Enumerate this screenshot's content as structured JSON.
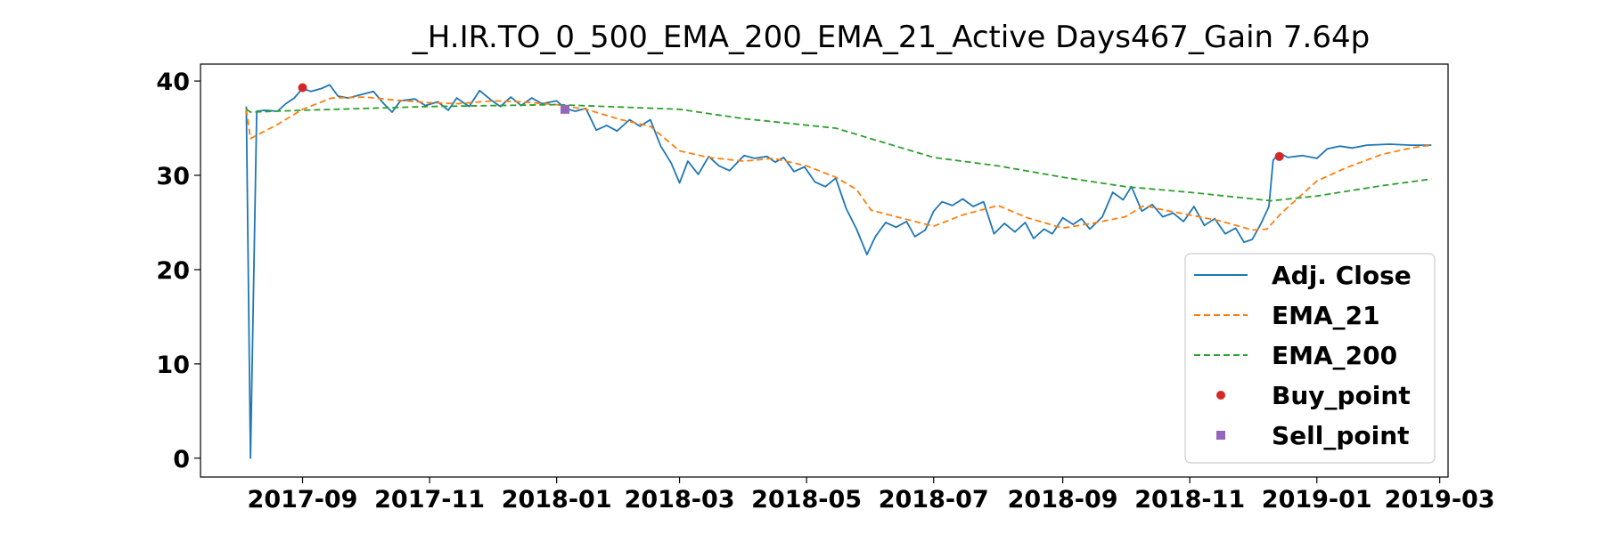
{
  "chart_data": {
    "type": "line",
    "title": "_H.IR.TO_0_500_EMA_200_EMA_21_Active Days467_Gain   7.64p",
    "xlabel": "",
    "ylabel": "",
    "x_range": [
      "2017-07-14",
      "2019-03-05"
    ],
    "ylim": [
      -2,
      41.8
    ],
    "grid": false,
    "legend_position": "lower right",
    "x_ticks": [
      "2017-09",
      "2017-11",
      "2018-01",
      "2018-03",
      "2018-05",
      "2018-07",
      "2018-09",
      "2018-11",
      "2019-01",
      "2019-03"
    ],
    "x_tick_dates": [
      "2017-09-01",
      "2017-11-01",
      "2018-01-01",
      "2018-03-01",
      "2018-05-01",
      "2018-07-01",
      "2018-09-01",
      "2018-11-01",
      "2019-01-01",
      "2019-03-01"
    ],
    "y_ticks": [
      0,
      10,
      20,
      30,
      40
    ],
    "colors": {
      "adj_close": "#1f77b4",
      "ema_21": "#ff7f0e",
      "ema_200": "#2ca02c",
      "buy_point": "#d62728",
      "sell_point": "#9467bd"
    },
    "series": [
      {
        "name": "Adj. Close",
        "style": "solid",
        "points": [
          [
            "2017-08-05",
            37.3
          ],
          [
            "2017-08-07",
            0
          ],
          [
            "2017-08-10",
            36.8
          ],
          [
            "2017-08-14",
            36.9
          ],
          [
            "2017-08-20",
            36.8
          ],
          [
            "2017-08-24",
            37.6
          ],
          [
            "2017-08-28",
            38.2
          ],
          [
            "2017-09-01",
            39.2
          ],
          [
            "2017-09-05",
            38.9
          ],
          [
            "2017-09-10",
            39.2
          ],
          [
            "2017-09-14",
            39.6
          ],
          [
            "2017-09-18",
            38.4
          ],
          [
            "2017-09-23",
            38.2
          ],
          [
            "2017-09-28",
            38.5
          ],
          [
            "2017-10-05",
            38.9
          ],
          [
            "2017-10-10",
            37.6
          ],
          [
            "2017-10-14",
            36.7
          ],
          [
            "2017-10-18",
            37.9
          ],
          [
            "2017-10-25",
            38.1
          ],
          [
            "2017-10-30",
            37.4
          ],
          [
            "2017-11-05",
            37.8
          ],
          [
            "2017-11-10",
            36.9
          ],
          [
            "2017-11-14",
            38.2
          ],
          [
            "2017-11-20",
            37.3
          ],
          [
            "2017-11-25",
            39.0
          ],
          [
            "2017-12-01",
            37.9
          ],
          [
            "2017-12-05",
            37.3
          ],
          [
            "2017-12-10",
            38.3
          ],
          [
            "2017-12-15",
            37.4
          ],
          [
            "2017-12-20",
            38.2
          ],
          [
            "2017-12-25",
            37.6
          ],
          [
            "2018-01-01",
            37.9
          ],
          [
            "2018-01-05",
            37.1
          ],
          [
            "2018-01-10",
            36.8
          ],
          [
            "2018-01-15",
            37.1
          ],
          [
            "2018-01-20",
            34.8
          ],
          [
            "2018-01-25",
            35.3
          ],
          [
            "2018-01-30",
            34.7
          ],
          [
            "2018-02-05",
            35.9
          ],
          [
            "2018-02-10",
            35.2
          ],
          [
            "2018-02-15",
            35.9
          ],
          [
            "2018-02-20",
            33.1
          ],
          [
            "2018-02-25",
            31.3
          ],
          [
            "2018-03-01",
            29.2
          ],
          [
            "2018-03-05",
            31.5
          ],
          [
            "2018-03-10",
            30.1
          ],
          [
            "2018-03-15",
            32.0
          ],
          [
            "2018-03-20",
            31.0
          ],
          [
            "2018-03-25",
            30.5
          ],
          [
            "2018-04-01",
            32.1
          ],
          [
            "2018-04-06",
            31.8
          ],
          [
            "2018-04-12",
            32.0
          ],
          [
            "2018-04-16",
            31.4
          ],
          [
            "2018-04-20",
            31.9
          ],
          [
            "2018-04-25",
            30.4
          ],
          [
            "2018-04-30",
            30.9
          ],
          [
            "2018-05-05",
            29.3
          ],
          [
            "2018-05-10",
            28.8
          ],
          [
            "2018-05-15",
            29.7
          ],
          [
            "2018-05-20",
            26.5
          ],
          [
            "2018-05-25",
            24.3
          ],
          [
            "2018-05-30",
            21.6
          ],
          [
            "2018-06-03",
            23.5
          ],
          [
            "2018-06-08",
            25.0
          ],
          [
            "2018-06-13",
            24.5
          ],
          [
            "2018-06-18",
            25.1
          ],
          [
            "2018-06-22",
            23.5
          ],
          [
            "2018-06-27",
            24.2
          ],
          [
            "2018-07-01",
            26.2
          ],
          [
            "2018-07-05",
            27.2
          ],
          [
            "2018-07-10",
            26.8
          ],
          [
            "2018-07-15",
            27.5
          ],
          [
            "2018-07-20",
            26.7
          ],
          [
            "2018-07-25",
            27.2
          ],
          [
            "2018-07-30",
            23.8
          ],
          [
            "2018-08-04",
            24.9
          ],
          [
            "2018-08-09",
            24.0
          ],
          [
            "2018-08-14",
            25.0
          ],
          [
            "2018-08-18",
            23.3
          ],
          [
            "2018-08-23",
            24.3
          ],
          [
            "2018-08-27",
            23.8
          ],
          [
            "2018-09-01",
            25.5
          ],
          [
            "2018-09-06",
            24.8
          ],
          [
            "2018-09-10",
            25.4
          ],
          [
            "2018-09-14",
            24.3
          ],
          [
            "2018-09-20",
            25.6
          ],
          [
            "2018-09-25",
            28.2
          ],
          [
            "2018-09-30",
            27.4
          ],
          [
            "2018-10-04",
            28.8
          ],
          [
            "2018-10-09",
            26.2
          ],
          [
            "2018-10-14",
            26.9
          ],
          [
            "2018-10-19",
            25.6
          ],
          [
            "2018-10-24",
            26.0
          ],
          [
            "2018-10-29",
            25.1
          ],
          [
            "2018-11-03",
            26.7
          ],
          [
            "2018-11-08",
            24.7
          ],
          [
            "2018-11-13",
            25.4
          ],
          [
            "2018-11-18",
            23.8
          ],
          [
            "2018-11-23",
            24.4
          ],
          [
            "2018-11-27",
            22.9
          ],
          [
            "2018-12-01",
            23.2
          ],
          [
            "2018-12-05",
            24.8
          ],
          [
            "2018-12-09",
            26.7
          ],
          [
            "2018-12-11",
            31.6
          ],
          [
            "2018-12-14",
            32.4
          ],
          [
            "2018-12-18",
            31.9
          ],
          [
            "2018-12-25",
            32.1
          ],
          [
            "2019-01-01",
            31.8
          ],
          [
            "2019-01-06",
            32.8
          ],
          [
            "2019-01-12",
            33.1
          ],
          [
            "2019-01-18",
            32.9
          ],
          [
            "2019-01-25",
            33.2
          ],
          [
            "2019-02-05",
            33.3
          ],
          [
            "2019-02-15",
            33.2
          ],
          [
            "2019-02-25",
            33.2
          ]
        ]
      },
      {
        "name": "EMA_21",
        "style": "dashed",
        "points": [
          [
            "2017-08-05",
            37.0
          ],
          [
            "2017-08-07",
            33.9
          ],
          [
            "2017-08-20",
            35.4
          ],
          [
            "2017-09-01",
            37.0
          ],
          [
            "2017-09-15",
            38.2
          ],
          [
            "2017-10-01",
            38.3
          ],
          [
            "2017-10-15",
            38.0
          ],
          [
            "2017-11-01",
            37.7
          ],
          [
            "2017-11-15",
            37.6
          ],
          [
            "2017-12-01",
            37.9
          ],
          [
            "2017-12-15",
            37.8
          ],
          [
            "2018-01-01",
            37.5
          ],
          [
            "2018-01-15",
            37.0
          ],
          [
            "2018-02-01",
            35.9
          ],
          [
            "2018-02-15",
            35.2
          ],
          [
            "2018-03-01",
            32.6
          ],
          [
            "2018-03-15",
            31.9
          ],
          [
            "2018-04-01",
            31.5
          ],
          [
            "2018-04-15",
            31.8
          ],
          [
            "2018-05-01",
            31.0
          ],
          [
            "2018-05-15",
            29.8
          ],
          [
            "2018-05-25",
            28.5
          ],
          [
            "2018-06-01",
            26.3
          ],
          [
            "2018-06-15",
            25.5
          ],
          [
            "2018-07-01",
            24.6
          ],
          [
            "2018-07-15",
            25.8
          ],
          [
            "2018-08-01",
            26.8
          ],
          [
            "2018-08-15",
            25.5
          ],
          [
            "2018-09-01",
            24.4
          ],
          [
            "2018-09-15",
            24.9
          ],
          [
            "2018-10-01",
            25.6
          ],
          [
            "2018-10-10",
            26.8
          ],
          [
            "2018-10-20",
            26.3
          ],
          [
            "2018-11-01",
            25.8
          ],
          [
            "2018-11-15",
            25.2
          ],
          [
            "2018-12-01",
            24.2
          ],
          [
            "2018-12-08",
            24.3
          ],
          [
            "2018-12-15",
            26.0
          ],
          [
            "2019-01-01",
            29.4
          ],
          [
            "2019-01-15",
            30.8
          ],
          [
            "2019-02-01",
            32.2
          ],
          [
            "2019-02-15",
            32.9
          ],
          [
            "2019-02-25",
            33.2
          ]
        ]
      },
      {
        "name": "EMA_200",
        "style": "dashed",
        "points": [
          [
            "2017-08-05",
            37.0
          ],
          [
            "2017-08-07",
            36.7
          ],
          [
            "2017-09-01",
            36.9
          ],
          [
            "2017-11-01",
            37.3
          ],
          [
            "2018-01-01",
            37.5
          ],
          [
            "2018-03-01",
            37.0
          ],
          [
            "2018-04-01",
            36.0
          ],
          [
            "2018-05-15",
            35.0
          ],
          [
            "2018-07-01",
            31.9
          ],
          [
            "2018-08-01",
            31.0
          ],
          [
            "2018-09-01",
            29.8
          ],
          [
            "2018-10-01",
            28.8
          ],
          [
            "2018-11-01",
            28.2
          ],
          [
            "2018-12-10",
            27.3
          ],
          [
            "2019-01-01",
            27.8
          ],
          [
            "2019-01-15",
            28.3
          ],
          [
            "2019-02-01",
            28.9
          ],
          [
            "2019-02-25",
            29.6
          ]
        ]
      }
    ],
    "buy_points": [
      [
        "2017-09-01",
        39.3
      ],
      [
        "2018-12-14",
        32.0
      ]
    ],
    "sell_points": [
      [
        "2018-01-05",
        37.0
      ]
    ],
    "legend": [
      "Adj. Close",
      "EMA_21",
      "EMA_200",
      "Buy_point",
      "Sell_point"
    ]
  }
}
